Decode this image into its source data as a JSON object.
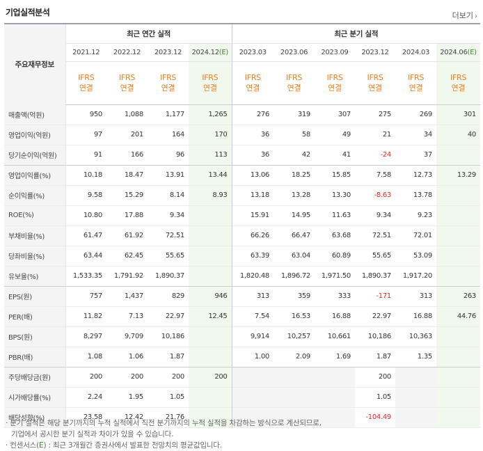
{
  "title": "기업실적분석",
  "more_label": "더보기",
  "header": {
    "row_label": "주요재무정보",
    "annual_group": "최근 연간 실적",
    "quarter_group": "최근 분기 실적",
    "annual_periods": [
      "2021.12",
      "2022.12",
      "2023.12",
      "2024.12"
    ],
    "quarter_periods": [
      "2023.03",
      "2023.06",
      "2023.09",
      "2023.12",
      "2024.03",
      "2024.06"
    ],
    "estimate_mark": "(E)",
    "basis_top": "IFRS",
    "basis_bottom": "연결"
  },
  "rows": [
    {
      "label": "매출액(억원)",
      "values": [
        "950",
        "1,088",
        "1,177",
        "1,265",
        "276",
        "319",
        "307",
        "275",
        "269",
        "301"
      ]
    },
    {
      "label": "영업이익(억원)",
      "values": [
        "97",
        "201",
        "164",
        "170",
        "36",
        "58",
        "49",
        "21",
        "34",
        "40"
      ]
    },
    {
      "label": "당기순이익(억원)",
      "values": [
        "91",
        "166",
        "96",
        "113",
        "36",
        "42",
        "41",
        "-24",
        "37",
        ""
      ]
    },
    {
      "label": "영업이익률(%)",
      "values": [
        "10.18",
        "18.47",
        "13.91",
        "13.44",
        "13.06",
        "18.25",
        "15.85",
        "7.58",
        "12.73",
        "13.29"
      ]
    },
    {
      "label": "순이익률(%)",
      "values": [
        "9.58",
        "15.29",
        "8.14",
        "8.93",
        "13.18",
        "13.28",
        "13.30",
        "-8.63",
        "13.78",
        ""
      ]
    },
    {
      "label": "ROE(%)",
      "values": [
        "10.80",
        "17.88",
        "9.34",
        "",
        "15.91",
        "14.95",
        "11.63",
        "9.34",
        "9.23",
        ""
      ]
    },
    {
      "label": "부채비율(%)",
      "values": [
        "61.47",
        "61.92",
        "72.51",
        "",
        "66.26",
        "66.47",
        "63.68",
        "72.51",
        "72.01",
        ""
      ]
    },
    {
      "label": "당좌비율(%)",
      "values": [
        "63.44",
        "62.45",
        "55.65",
        "",
        "63.39",
        "63.04",
        "60.89",
        "55.65",
        "53.09",
        ""
      ]
    },
    {
      "label": "유보율(%)",
      "values": [
        "1,533.35",
        "1,791.92",
        "1,890.37",
        "",
        "1,820.48",
        "1,896.72",
        "1,971.50",
        "1,890.37",
        "1,917.20",
        ""
      ]
    },
    {
      "label": "EPS(원)",
      "values": [
        "757",
        "1,437",
        "829",
        "946",
        "313",
        "359",
        "333",
        "-171",
        "313",
        "263"
      ]
    },
    {
      "label": "PER(배)",
      "values": [
        "11.82",
        "7.13",
        "22.97",
        "12.45",
        "7.54",
        "16.53",
        "16.88",
        "22.97",
        "16.88",
        "44.76"
      ]
    },
    {
      "label": "BPS(원)",
      "values": [
        "8,297",
        "9,709",
        "10,186",
        "",
        "9,914",
        "10,257",
        "10,661",
        "10,186",
        "10,363",
        ""
      ]
    },
    {
      "label": "PBR(배)",
      "values": [
        "1.08",
        "1.06",
        "1.87",
        "",
        "1.00",
        "2.09",
        "1.69",
        "1.87",
        "1.35",
        ""
      ]
    },
    {
      "label": "주당배당금(원)",
      "values": [
        "200",
        "200",
        "200",
        "200",
        "",
        "",
        "",
        "200",
        "",
        ""
      ]
    },
    {
      "label": "시가배당률(%)",
      "values": [
        "2.24",
        "1.95",
        "1.05",
        "",
        "",
        "",
        "",
        "1.05",
        "",
        ""
      ]
    },
    {
      "label": "배당성향(%)",
      "values": [
        "23.58",
        "12.42",
        "21.76",
        "",
        "",
        "",
        "",
        "-104.49",
        "",
        ""
      ]
    }
  ],
  "notes": {
    "line1": "· 분기 실적은 해당 분기까지의 누적 실적에서 직전 분기까지의 누적 실적을 차감하는 방식으로 계산되므로,",
    "line2": "기업에서 공시한 분기 실적과 차이가 있을 수 있습니다.",
    "line3_prefix": "· 컨센서스(",
    "line3_mark": "E",
    "line3_suffix": ") : 최근 3개월간 증권사에서 발표한 전망치의 평균값입니다."
  },
  "colors": {
    "basis_orange": "#f07c1a",
    "estimate_green": "#3b8b2a",
    "estimate_bg": "#f1f8ee",
    "negative_red": "#e8251f"
  }
}
